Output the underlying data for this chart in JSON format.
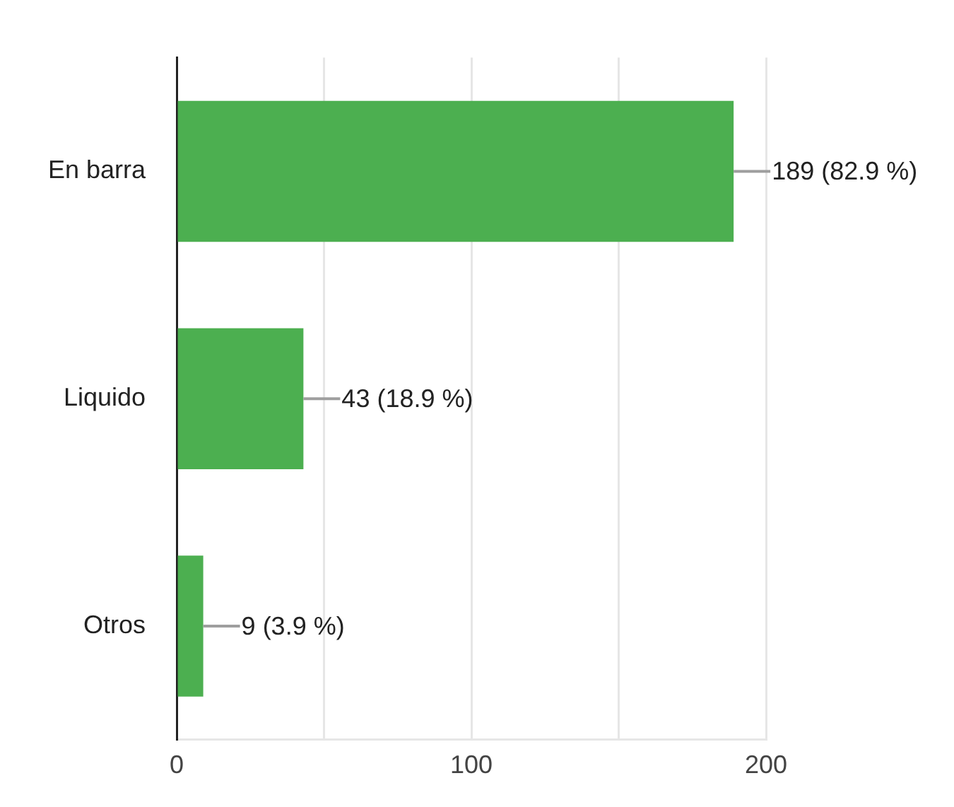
{
  "chart_data": {
    "type": "bar",
    "orientation": "horizontal",
    "categories": [
      "En barra",
      "Liquido",
      "Otros"
    ],
    "values": [
      189,
      43,
      9
    ],
    "color": "#4caf50",
    "value_labels": [
      "189 (82.9 %)",
      "43 (18.9 %)",
      "9 (3.9 %)"
    ],
    "xlim": [
      0,
      200
    ],
    "xticks": [
      0,
      {
        "value": 50,
        "label": null
      },
      100,
      {
        "value": 150,
        "label": null
      },
      200
    ],
    "grid": "x",
    "legend": false
  }
}
